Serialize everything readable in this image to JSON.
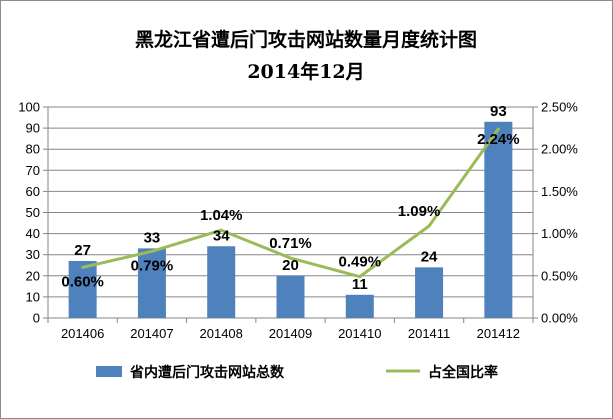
{
  "chart_data": {
    "type": "bar+line",
    "title": "黑龙江省遭后门攻击网站数量月度统计图",
    "subtitle": "2014年12月",
    "categories": [
      "201406",
      "201407",
      "201408",
      "201409",
      "201410",
      "201411",
      "201412"
    ],
    "series": [
      {
        "name": "省内遭后门攻击网站总数",
        "type": "bar",
        "axis": "left",
        "color": "#4f81bd",
        "values": [
          27,
          33,
          34,
          20,
          11,
          24,
          93
        ],
        "labels": [
          "27",
          "33",
          "34",
          "20",
          "11",
          "24",
          "93"
        ]
      },
      {
        "name": "占全国比率",
        "type": "line",
        "axis": "right",
        "color": "#9bbb59",
        "values": [
          0.6,
          0.79,
          1.04,
          0.71,
          0.49,
          1.09,
          2.24
        ],
        "labels": [
          "0.60%",
          "0.79%",
          "1.04%",
          "0.71%",
          "0.49%",
          "1.09%",
          "2.24%"
        ]
      }
    ],
    "y_left": {
      "lim": [
        0,
        100
      ],
      "ticks": [
        "0",
        "10",
        "20",
        "30",
        "40",
        "50",
        "60",
        "70",
        "80",
        "90",
        "100"
      ]
    },
    "y_right": {
      "lim": [
        0,
        2.5
      ],
      "ticks": [
        "0.00%",
        "0.50%",
        "1.00%",
        "1.50%",
        "2.00%",
        "2.50%"
      ]
    },
    "grid": true,
    "legend_position": "bottom"
  }
}
